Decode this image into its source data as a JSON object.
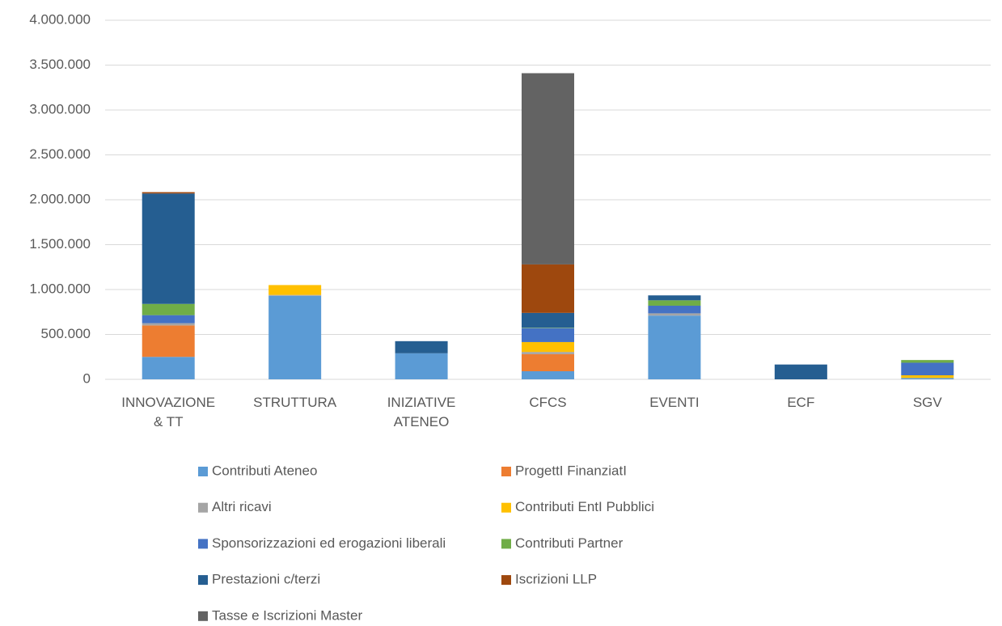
{
  "chart_data": {
    "type": "bar",
    "stacked": true,
    "categories": [
      "INNOVAZIONE & TT",
      "STRUTTURA",
      "INIZIATIVE ATENEO",
      "CFCS",
      "EVENTI",
      "ECF",
      "SGV"
    ],
    "series": [
      {
        "name": "Contributi Ateneo",
        "color": "#5b9bd5",
        "values": [
          250000,
          930000,
          290000,
          90000,
          710000,
          0,
          15000
        ]
      },
      {
        "name": "ProgettI FinanziatI",
        "color": "#ed7d31",
        "values": [
          350000,
          0,
          0,
          190000,
          0,
          0,
          0
        ]
      },
      {
        "name": "Altri ricavi",
        "color": "#a5a5a5",
        "values": [
          25000,
          10000,
          0,
          25000,
          25000,
          0,
          0
        ]
      },
      {
        "name": "Contributi EntI Pubblici",
        "color": "#ffc000",
        "values": [
          0,
          110000,
          0,
          110000,
          0,
          0,
          30000
        ]
      },
      {
        "name": "Sponsorizzazioni ed erogazioni liberali",
        "color": "#4472c4",
        "values": [
          90000,
          0,
          0,
          155000,
          85000,
          0,
          140000
        ]
      },
      {
        "name": "Contributi Partner",
        "color": "#70ad47",
        "values": [
          125000,
          0,
          0,
          5000,
          60000,
          0,
          30000
        ]
      },
      {
        "name": "Prestazioni c/terzi",
        "color": "#255e91",
        "values": [
          1230000,
          0,
          135000,
          165000,
          55000,
          165000,
          0
        ]
      },
      {
        "name": "Iscrizioni LLP",
        "color": "#9e480e",
        "values": [
          15000,
          0,
          0,
          540000,
          0,
          0,
          0
        ]
      },
      {
        "name": "Tasse e Iscrizioni Master",
        "color": "#636363",
        "values": [
          0,
          0,
          0,
          2130000,
          0,
          0,
          0
        ]
      }
    ],
    "ylim": [
      0,
      4000000
    ],
    "yticks": [
      0,
      {
        "value": 500000,
        "label": "500.000"
      },
      {
        "value": 1000000,
        "label": "1.000.000"
      },
      {
        "value": 1500000,
        "label": "1.500.000"
      },
      {
        "value": 2000000,
        "label": "2.000.000"
      },
      {
        "value": 2500000,
        "label": "2.500.000"
      },
      {
        "value": 3000000,
        "label": "3.000.000"
      },
      {
        "value": 3500000,
        "label": "3.500.000"
      },
      {
        "value": 4000000,
        "label": "4.000.000"
      }
    ],
    "grid": true,
    "legend": "bottom"
  }
}
